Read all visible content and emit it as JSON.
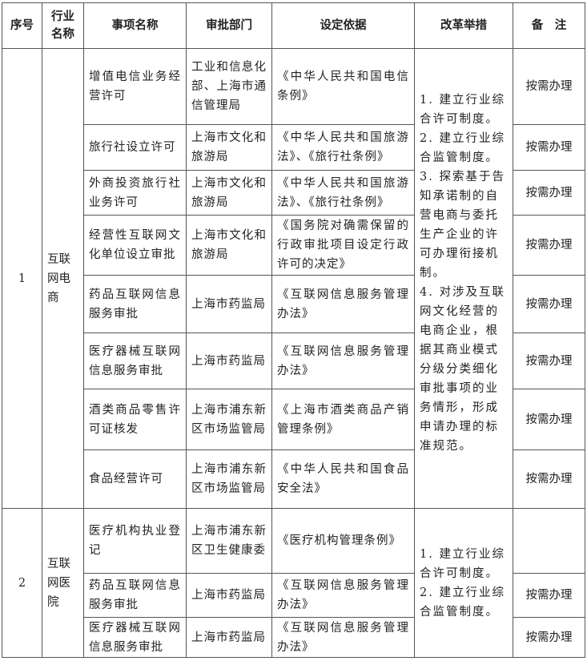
{
  "headers": [
    "序号",
    "行业名称",
    "事项名称",
    "审批部门",
    "设定依据",
    "改革举措",
    "备　注"
  ],
  "sections": [
    {
      "index": "1",
      "industry": "互联网电商",
      "reform": "1. 建立行业综合许可制度。\n2. 建立行业综合监管制度。\n3. 探索基于告知承诺制的自营电商与委托生产企业的许可办理衔接机制。\n4. 对涉及互联网文化经营的电商企业，根据其商业模式分级分类细化审批事项的业务情形，形成申请办理的标准规范。",
      "rows": [
        {
          "item": "增值电信业务经营许可",
          "dept": "工业和信息化部、上海市通信管理局",
          "basis": "《中华人民共和国电信条例》",
          "note": "按需办理"
        },
        {
          "item": "旅行社设立许可",
          "dept": "上海市文化和旅游局",
          "basis": "《中华人民共和国旅游法》、《旅行社条例》",
          "note": "按需办理"
        },
        {
          "item": "外商投资旅行社业务许可",
          "dept": "上海市文化和旅游局",
          "basis": "《中华人民共和国旅游法》、《旅行社条例》",
          "note": "按需办理"
        },
        {
          "item": "经营性互联网文化单位设立审批",
          "dept": "上海市文化和旅游局",
          "basis": "《国务院对确需保留的行政审批项目设定行政许可的决定》",
          "note": "按需办理"
        },
        {
          "item": "药品互联网信息服务审批",
          "dept": "上海市药监局",
          "basis": "《互联网信息服务管理办法》",
          "note": "按需办理"
        },
        {
          "item": "医疗器械互联网信息服务审批",
          "dept": "上海市药监局",
          "basis": "《互联网信息服务管理办法》",
          "note": "按需办理"
        },
        {
          "item": "酒类商品零售许可证核发",
          "dept": "上海市浦东新区市场监管局",
          "basis": "《上海市酒类商品产销管理条例》",
          "note": "按需办理"
        },
        {
          "item": "食品经营许可",
          "dept": "上海市浦东新区市场监管局",
          "basis": "《中华人民共和国食品安全法》",
          "note": "按需办理"
        }
      ]
    },
    {
      "index": "2",
      "industry": "互联网医院",
      "reform": "1. 建立行业综合许可制度。\n2. 建立行业综合监管制度。",
      "rows": [
        {
          "item": "医疗机构执业登记",
          "dept": "上海市浦东新区卫生健康委",
          "basis": "《医疗机构管理条例》",
          "note": ""
        },
        {
          "item": "药品互联网信息服务审批",
          "dept": "上海市药监局",
          "basis": "《互联网信息服务管理办法》",
          "note": "按需办理"
        },
        {
          "item": "医疗器械互联网信息服务审批",
          "dept": "上海市药监局",
          "basis": "《互联网信息服务管理办法》",
          "note": "按需办理"
        }
      ]
    }
  ]
}
